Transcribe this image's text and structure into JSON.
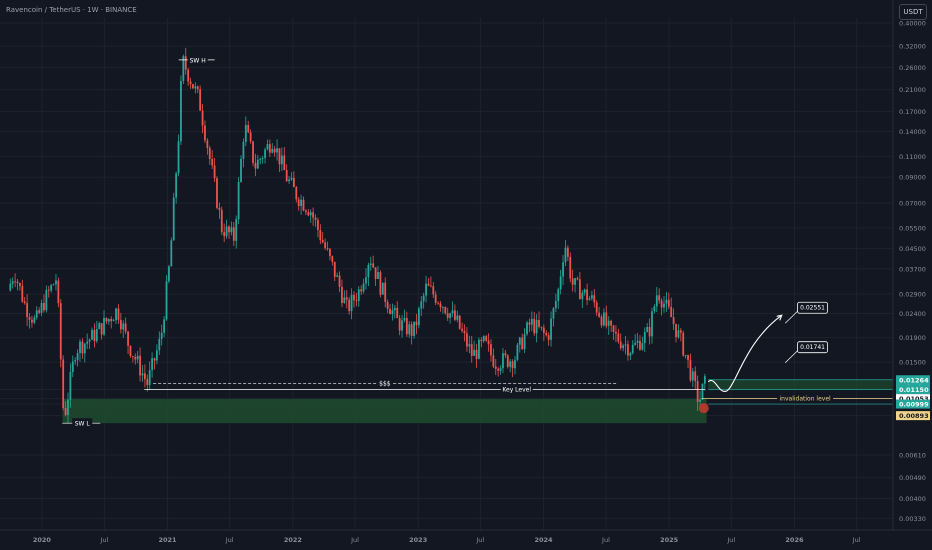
{
  "header": {
    "symbol": "Ravencoin / TetherUS · 1W · BINANCE",
    "currency": "USDT"
  },
  "colors": {
    "background": "#131722",
    "grid": "#1e222d",
    "up": "#26a69a",
    "down": "#ef5350",
    "axis_text": "#8a8e99",
    "annotation": "#d1d4dc",
    "zone_fill": "#1f4b2e",
    "invalidation": "#f0d38a",
    "highlight": "#26a69a"
  },
  "chart_data": {
    "type": "candlestick",
    "y_scale": "log",
    "ylim": [
      0.00295,
      0.42
    ],
    "x_range": [
      "2019-09-01",
      "2026-10-15"
    ],
    "y_ticks": [
      "0.40000",
      "0.32000",
      "0.26000",
      "0.21000",
      "0.17000",
      "0.14000",
      "0.11000",
      "0.09000",
      "0.07000",
      "0.05500",
      "0.04500",
      "0.03700",
      "0.02900",
      "0.02400",
      "0.01900",
      "0.01500",
      "0.01150",
      "0.01053",
      "0.00999",
      "0.00893",
      "0.00610",
      "0.00490",
      "0.00400",
      "0.00330"
    ],
    "x_ticks": [
      {
        "label": "2020",
        "date": "2020-01-01"
      },
      {
        "label": "Jul",
        "date": "2020-07-01"
      },
      {
        "label": "2021",
        "date": "2021-01-01"
      },
      {
        "label": "Jul",
        "date": "2021-07-01"
      },
      {
        "label": "2022",
        "date": "2022-01-01"
      },
      {
        "label": "Jul",
        "date": "2022-07-01"
      },
      {
        "label": "2023",
        "date": "2023-01-01"
      },
      {
        "label": "Jul",
        "date": "2023-07-01"
      },
      {
        "label": "2024",
        "date": "2024-01-01"
      },
      {
        "label": "Jul",
        "date": "2024-07-01"
      },
      {
        "label": "2025",
        "date": "2025-01-01"
      },
      {
        "label": "Jul",
        "date": "2025-07-01"
      },
      {
        "label": "2026",
        "date": "2026-01-01"
      },
      {
        "label": "Jul",
        "date": "2026-07-01"
      }
    ],
    "price_path": [
      {
        "date": "2019-10-01",
        "price": 0.03
      },
      {
        "date": "2019-10-20",
        "price": 0.036
      },
      {
        "date": "2019-11-20",
        "price": 0.026
      },
      {
        "date": "2019-12-20",
        "price": 0.022
      },
      {
        "date": "2020-01-20",
        "price": 0.028
      },
      {
        "date": "2020-02-20",
        "price": 0.034
      },
      {
        "date": "2020-03-12",
        "price": 0.0085
      },
      {
        "date": "2020-04-15",
        "price": 0.017
      },
      {
        "date": "2020-06-01",
        "price": 0.019
      },
      {
        "date": "2020-08-15",
        "price": 0.025
      },
      {
        "date": "2020-09-15",
        "price": 0.018
      },
      {
        "date": "2020-11-10",
        "price": 0.0122
      },
      {
        "date": "2020-12-20",
        "price": 0.019
      },
      {
        "date": "2021-01-15",
        "price": 0.04
      },
      {
        "date": "2021-02-10",
        "price": 0.14
      },
      {
        "date": "2021-02-20",
        "price": 0.28
      },
      {
        "date": "2021-04-10",
        "price": 0.19
      },
      {
        "date": "2021-05-01",
        "price": 0.13
      },
      {
        "date": "2021-06-15",
        "price": 0.055
      },
      {
        "date": "2021-07-20",
        "price": 0.05
      },
      {
        "date": "2021-08-20",
        "price": 0.15
      },
      {
        "date": "2021-09-20",
        "price": 0.1
      },
      {
        "date": "2021-11-10",
        "price": 0.13
      },
      {
        "date": "2021-12-20",
        "price": 0.09
      },
      {
        "date": "2022-01-20",
        "price": 0.075
      },
      {
        "date": "2022-03-01",
        "price": 0.065
      },
      {
        "date": "2022-05-12",
        "price": 0.035
      },
      {
        "date": "2022-06-15",
        "price": 0.025
      },
      {
        "date": "2022-07-20",
        "price": 0.03
      },
      {
        "date": "2022-08-20",
        "price": 0.042
      },
      {
        "date": "2022-09-25",
        "price": 0.03
      },
      {
        "date": "2022-11-10",
        "price": 0.022
      },
      {
        "date": "2022-12-25",
        "price": 0.02
      },
      {
        "date": "2023-02-01",
        "price": 0.031
      },
      {
        "date": "2023-03-15",
        "price": 0.027
      },
      {
        "date": "2023-05-01",
        "price": 0.022
      },
      {
        "date": "2023-06-15",
        "price": 0.016
      },
      {
        "date": "2023-07-20",
        "price": 0.018
      },
      {
        "date": "2023-08-20",
        "price": 0.015
      },
      {
        "date": "2023-10-15",
        "price": 0.0155
      },
      {
        "date": "2023-12-01",
        "price": 0.022
      },
      {
        "date": "2024-01-20",
        "price": 0.019
      },
      {
        "date": "2024-02-20",
        "price": 0.03
      },
      {
        "date": "2024-03-10",
        "price": 0.048
      },
      {
        "date": "2024-04-01",
        "price": 0.032
      },
      {
        "date": "2024-06-01",
        "price": 0.027
      },
      {
        "date": "2024-07-20",
        "price": 0.02
      },
      {
        "date": "2024-09-20",
        "price": 0.017
      },
      {
        "date": "2024-11-10",
        "price": 0.02
      },
      {
        "date": "2024-12-05",
        "price": 0.03
      },
      {
        "date": "2025-01-15",
        "price": 0.023
      },
      {
        "date": "2025-02-20",
        "price": 0.017
      },
      {
        "date": "2025-04-05",
        "price": 0.0102
      },
      {
        "date": "2025-04-20",
        "price": 0.0121
      }
    ],
    "levels": [
      {
        "name": "SW H",
        "price": 0.28,
        "date": "2021-02-20"
      },
      {
        "name": "SW L",
        "price": 0.0083,
        "date": "2020-03-12"
      },
      {
        "name": "$$$",
        "price": 0.0122,
        "from": "2020-11-20",
        "to": "2024-08-01"
      },
      {
        "name": "Key Level",
        "price": 0.0115,
        "from": "2020-10-25",
        "to": "2025-04-15"
      },
      {
        "name": "invalidation level",
        "price": 0.01053,
        "from": "2025-04-05",
        "to": "2026-10-15"
      }
    ],
    "demand_zone": {
      "from": "2020-03-01",
      "to": "2025-04-20",
      "top": 0.0105,
      "bottom": 0.0083
    },
    "targets": [
      "0.01741",
      "0.02551"
    ],
    "price_labels": [
      {
        "value": "0.01264",
        "sub": "1d 14h",
        "style": "current"
      },
      {
        "value": "0.01150",
        "style": "green"
      },
      {
        "value": "0.01053",
        "style": "white"
      },
      {
        "value": "0.00999",
        "style": "green"
      },
      {
        "value": "0.00893",
        "style": "yellow"
      }
    ]
  }
}
